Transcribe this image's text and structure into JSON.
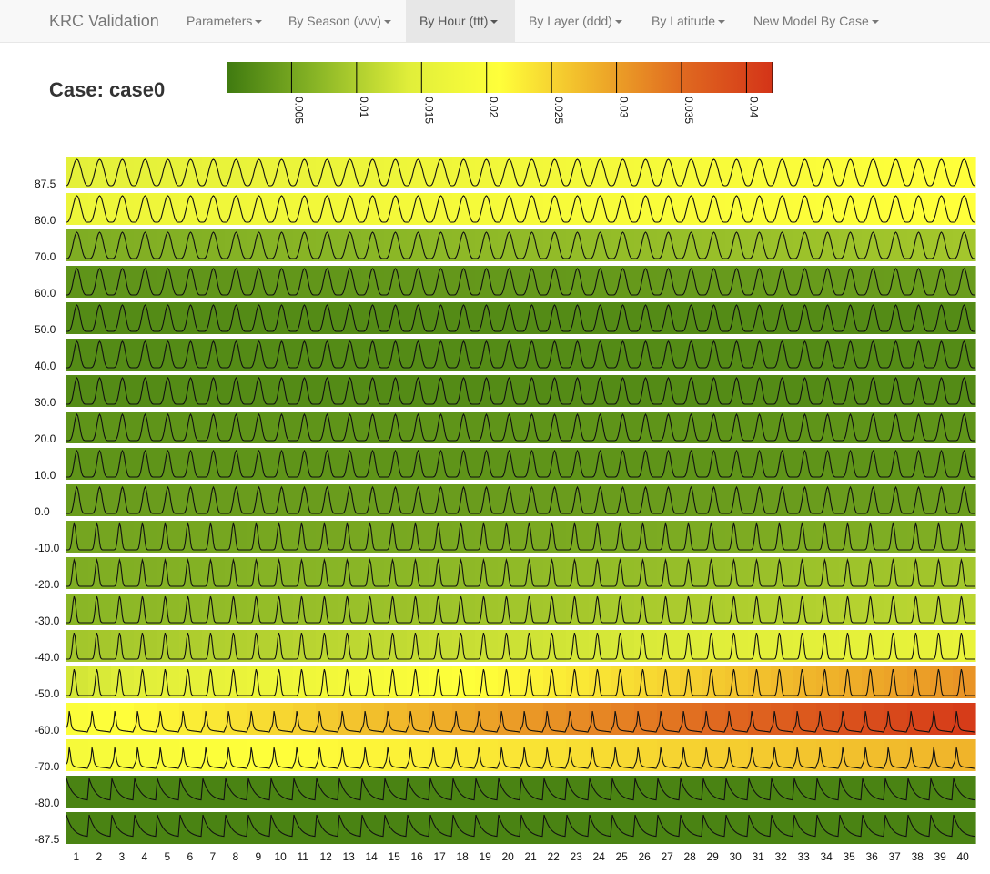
{
  "nav": {
    "brand": "KRC Validation",
    "items": [
      {
        "label": "Parameters",
        "active": false
      },
      {
        "label": "By Season (vvv)",
        "active": false
      },
      {
        "label": "By Hour (ttt)",
        "active": true
      },
      {
        "label": "By Layer (ddd)",
        "active": false
      },
      {
        "label": "By Latitude",
        "active": false
      },
      {
        "label": "New Model By Case",
        "active": false
      }
    ]
  },
  "case": {
    "title": "Case: case0"
  },
  "colors": {
    "scale": [
      "#3f7a10",
      "#8ab626",
      "#e0ee3a",
      "#ffff3a",
      "#f0b42a",
      "#e06a20",
      "#d43418"
    ]
  },
  "chart_data": {
    "type": "heatmap",
    "colorbar": {
      "ticks": [
        "0.005",
        "0.01",
        "0.015",
        "0.02",
        "0.025",
        "0.03",
        "0.035",
        "0.04"
      ],
      "range": [
        0,
        0.042
      ]
    },
    "rows": [
      "87.5",
      "80.0",
      "70.0",
      "60.0",
      "50.0",
      "40.0",
      "30.0",
      "20.0",
      "10.0",
      "0.0",
      "-10.0",
      "-20.0",
      "-30.0",
      "-40.0",
      "-50.0",
      "-60.0",
      "-70.0",
      "-80.0",
      "-87.5"
    ],
    "columns": [
      "1",
      "2",
      "3",
      "4",
      "5",
      "6",
      "7",
      "8",
      "9",
      "10",
      "11",
      "12",
      "13",
      "14",
      "15",
      "16",
      "17",
      "18",
      "19",
      "20",
      "21",
      "22",
      "23",
      "24",
      "25",
      "26",
      "27",
      "28",
      "29",
      "30",
      "31",
      "32",
      "33",
      "34",
      "35",
      "36",
      "37",
      "38",
      "39",
      "40"
    ],
    "row_values": [
      {
        "start": 0.015,
        "end": 0.021
      },
      {
        "start": 0.017,
        "end": 0.021
      },
      {
        "start": 0.006,
        "end": 0.009
      },
      {
        "start": 0.003,
        "end": 0.004
      },
      {
        "start": 0.002,
        "end": 0.002
      },
      {
        "start": 0.002,
        "end": 0.002
      },
      {
        "start": 0.002,
        "end": 0.002
      },
      {
        "start": 0.003,
        "end": 0.003
      },
      {
        "start": 0.003,
        "end": 0.003
      },
      {
        "start": 0.004,
        "end": 0.004
      },
      {
        "start": 0.005,
        "end": 0.006
      },
      {
        "start": 0.006,
        "end": 0.009
      },
      {
        "start": 0.007,
        "end": 0.011
      },
      {
        "start": 0.009,
        "end": 0.016
      },
      {
        "start": 0.013,
        "end": 0.031
      },
      {
        "start": 0.02,
        "end": 0.041
      },
      {
        "start": 0.019,
        "end": 0.028
      },
      {
        "start": 0.001,
        "end": 0.001
      },
      {
        "start": 0.001,
        "end": 0.001
      }
    ]
  }
}
